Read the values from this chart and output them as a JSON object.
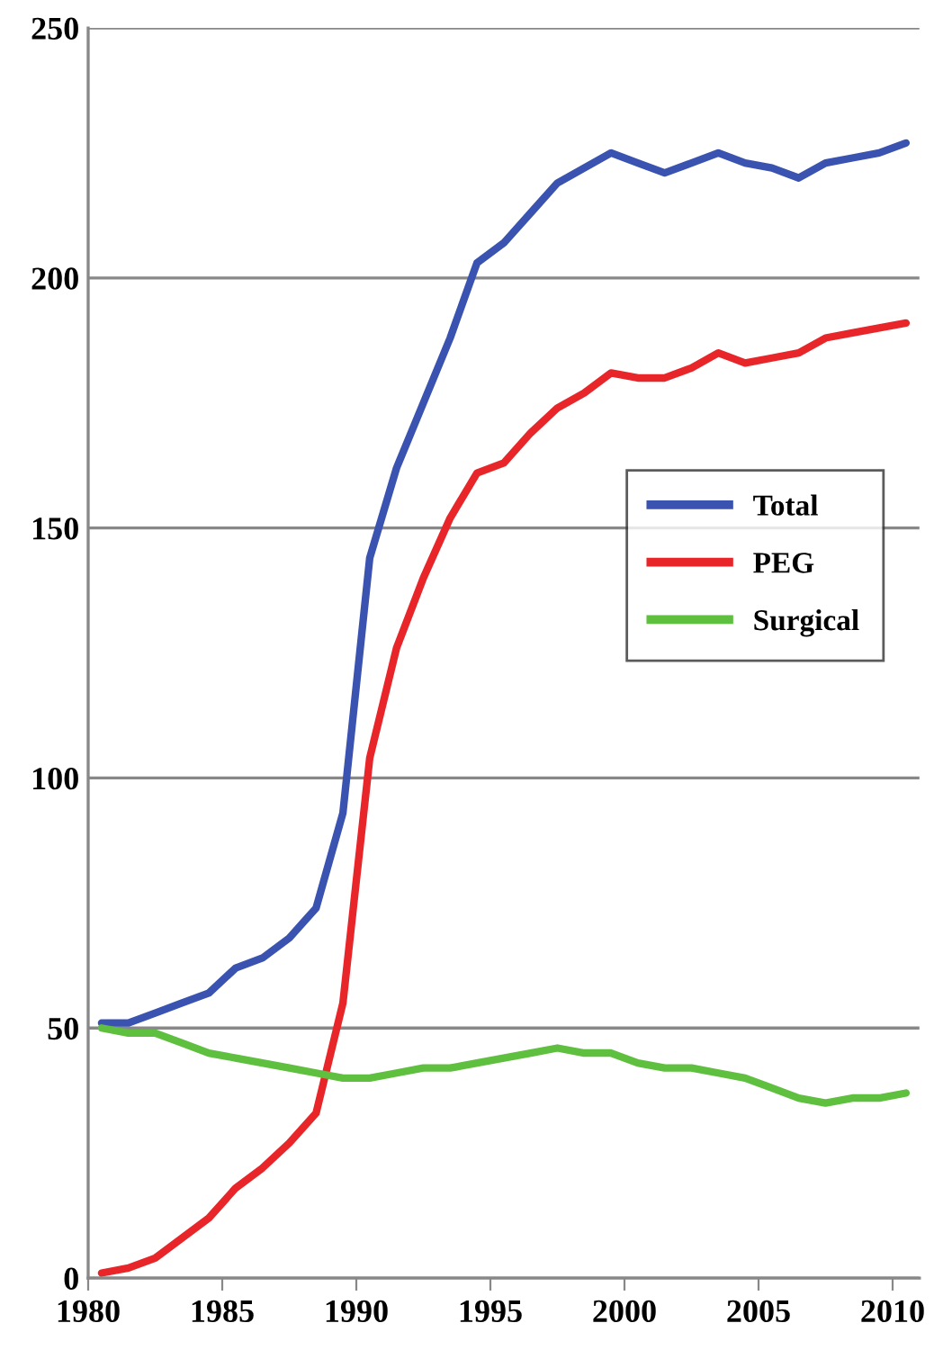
{
  "chart_data": {
    "type": "line",
    "x": [
      1980.5,
      1981.5,
      1982.5,
      1983.5,
      1984.5,
      1985.5,
      1986.5,
      1987.5,
      1988.5,
      1989.5,
      1990.5,
      1991.5,
      1992.5,
      1993.5,
      1994.5,
      1995.5,
      1996.5,
      1997.5,
      1998.5,
      1999.5,
      2000.5,
      2001.5,
      2002.5,
      2003.5,
      2004.5,
      2005.5,
      2006.5,
      2007.5,
      2008.5,
      2009.5,
      2010.5
    ],
    "series": [
      {
        "name": "Total",
        "color": "#3a53b0",
        "values": [
          51,
          51,
          53,
          55,
          57,
          62,
          64,
          68,
          74,
          93,
          144,
          162,
          175,
          188,
          203,
          207,
          213,
          219,
          222,
          225,
          223,
          221,
          223,
          225,
          223,
          222,
          220,
          223,
          224,
          225,
          227
        ]
      },
      {
        "name": "PEG",
        "color": "#e8262a",
        "values": [
          1,
          2,
          4,
          8,
          12,
          18,
          22,
          27,
          33,
          55,
          104,
          126,
          140,
          152,
          161,
          163,
          169,
          174,
          177,
          181,
          180,
          180,
          182,
          185,
          183,
          184,
          185,
          188,
          189,
          190,
          191
        ]
      },
      {
        "name": "Surgical",
        "color": "#5fbf3f",
        "values": [
          50,
          49,
          49,
          47,
          45,
          44,
          43,
          42,
          41,
          40,
          40,
          41,
          42,
          42,
          43,
          44,
          45,
          46,
          45,
          45,
          43,
          42,
          42,
          41,
          40,
          38,
          36,
          35,
          36,
          36,
          37
        ]
      }
    ],
    "xlim": [
      1980,
      2011
    ],
    "xticks": [
      1980,
      1985,
      1990,
      1995,
      2000,
      2005,
      2010
    ],
    "ylim": [
      0,
      250
    ],
    "yticks": [
      0,
      50,
      100,
      150,
      200,
      250
    ],
    "grid": "y",
    "legend": "right",
    "marker": "none",
    "line_style": "solid"
  }
}
